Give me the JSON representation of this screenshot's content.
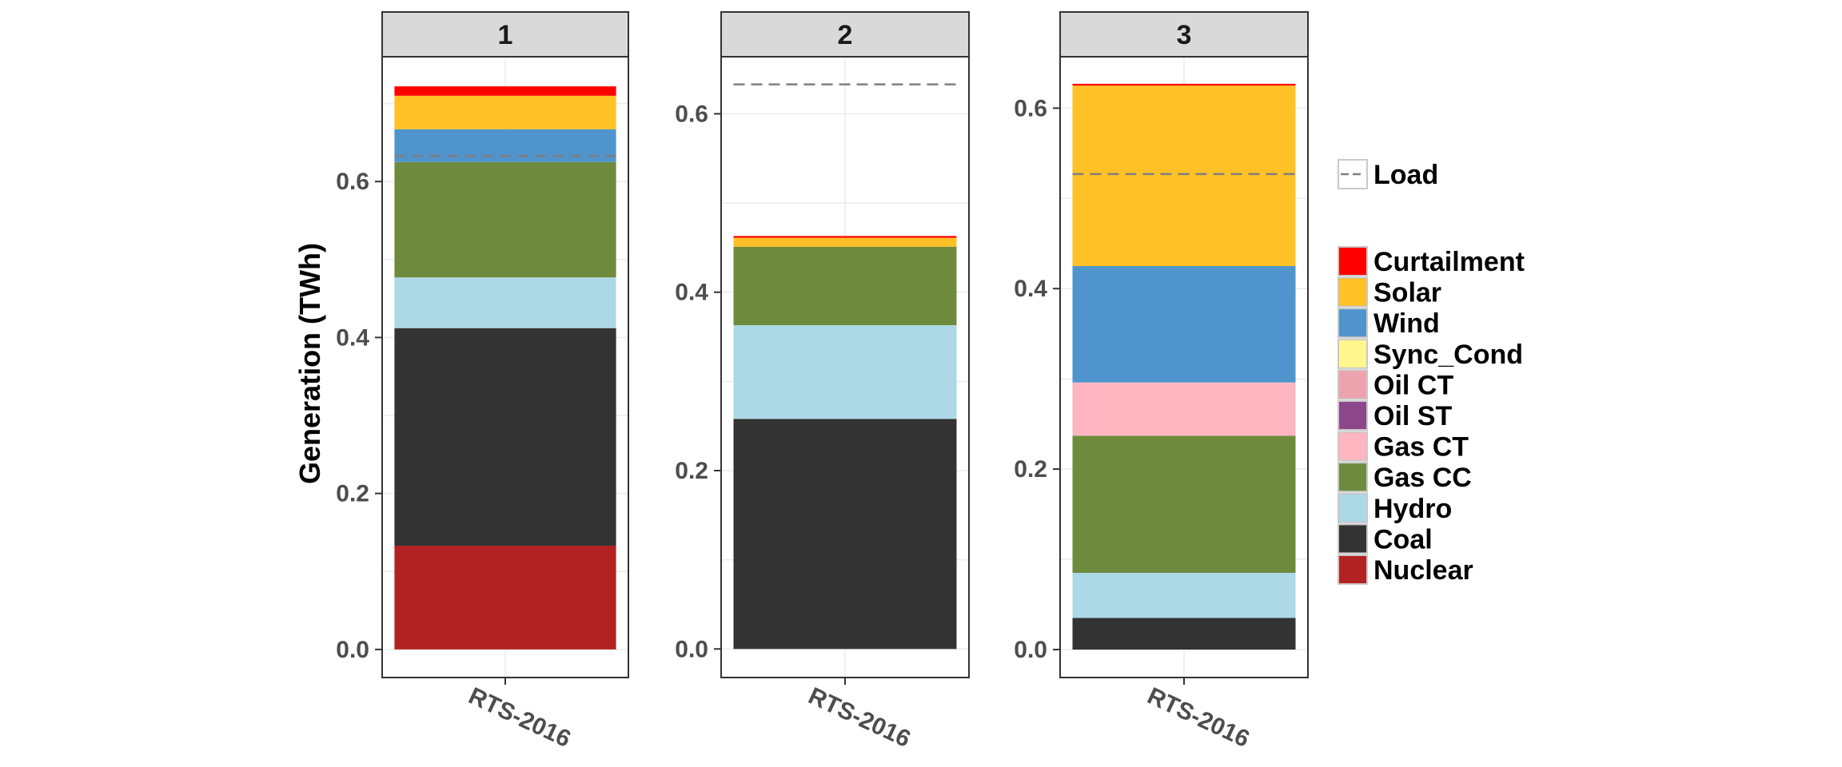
{
  "chart_data": {
    "type": "bar",
    "stacked": true,
    "ylabel": "Generation (TWh)",
    "xlabel": "",
    "y_ticks": [
      0.0,
      0.2,
      0.4,
      0.6
    ],
    "y_tick_labels": [
      "0.0",
      "0.2",
      "0.4",
      "0.6"
    ],
    "category": "RTS-2016",
    "grid": true,
    "legend_position": "right",
    "load_legend": {
      "label": "Load",
      "color": "#7f7f7f"
    },
    "series": [
      {
        "name": "Nuclear",
        "color": "#b22222"
      },
      {
        "name": "Coal",
        "color": "#333333"
      },
      {
        "name": "Hydro",
        "color": "#add8e6"
      },
      {
        "name": "Gas CC",
        "color": "#6e8b3d"
      },
      {
        "name": "Gas CT",
        "color": "#ffb6c1"
      },
      {
        "name": "Oil ST",
        "color": "#8b4789"
      },
      {
        "name": "Oil CT",
        "color": "#eea2ad"
      },
      {
        "name": "Sync_Cond",
        "color": "#fff68f"
      },
      {
        "name": "Wind",
        "color": "#4f94cd"
      },
      {
        "name": "Solar",
        "color": "#ffc125"
      },
      {
        "name": "Curtailment",
        "color": "#ff0000"
      }
    ],
    "panels": [
      {
        "label": "1",
        "ylim": [
          -0.036,
          0.76
        ],
        "load": 0.633,
        "values": {
          "Nuclear": 0.133,
          "Coal": 0.279,
          "Hydro": 0.065,
          "Gas CC": 0.148,
          "Gas CT": 0,
          "Oil ST": 0,
          "Oil CT": 0,
          "Sync_Cond": 0,
          "Wind": 0.042,
          "Solar": 0.043,
          "Curtailment": 0.012
        }
      },
      {
        "label": "2",
        "ylim": [
          -0.032,
          0.664
        ],
        "load": 0.633,
        "values": {
          "Nuclear": 0,
          "Coal": 0.258,
          "Hydro": 0.105,
          "Gas CC": 0.088,
          "Gas CT": 0,
          "Oil ST": 0,
          "Oil CT": 0,
          "Sync_Cond": 0,
          "Wind": 0,
          "Solar": 0.01,
          "Curtailment": 0.002
        }
      },
      {
        "label": "3",
        "ylim": [
          -0.031,
          0.657
        ],
        "load": 0.527,
        "values": {
          "Nuclear": 0,
          "Coal": 0.035,
          "Hydro": 0.05,
          "Gas CC": 0.152,
          "Gas CT": 0.059,
          "Oil ST": 0,
          "Oil CT": 0,
          "Sync_Cond": 0,
          "Wind": 0.129,
          "Solar": 0.2,
          "Curtailment": 0.002
        }
      }
    ]
  }
}
